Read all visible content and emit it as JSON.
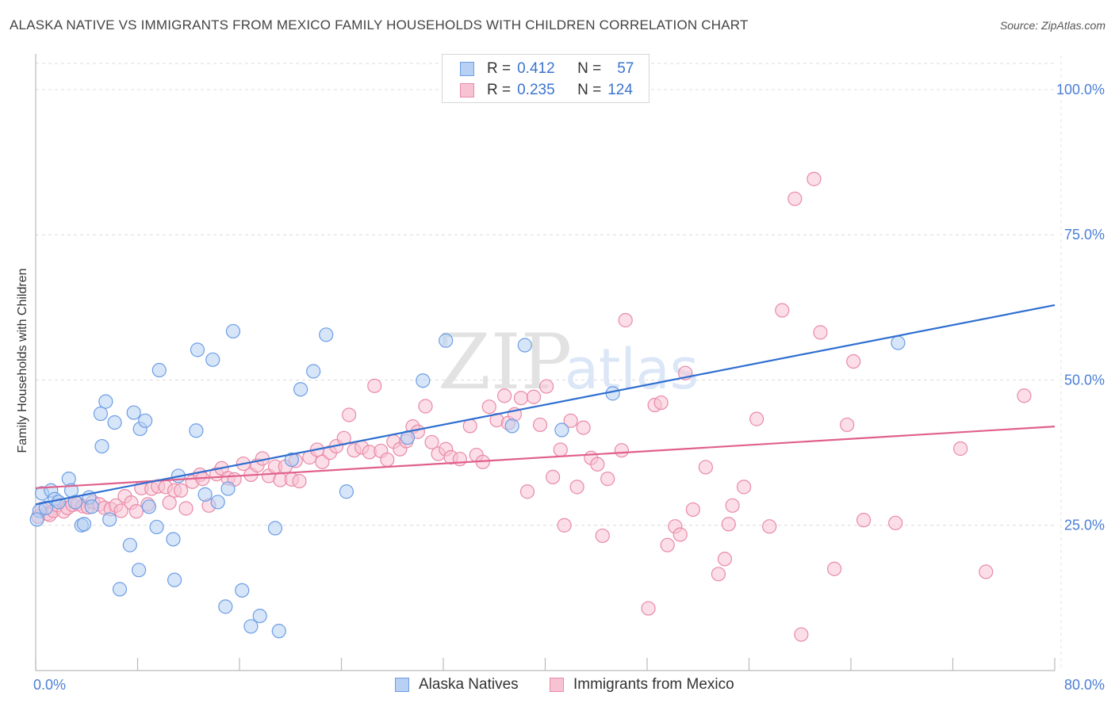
{
  "title": "ALASKA NATIVE VS IMMIGRANTS FROM MEXICO FAMILY HOUSEHOLDS WITH CHILDREN CORRELATION CHART",
  "source": "Source: ZipAtlas.com",
  "legend": {
    "rows": [
      {
        "r_label": "R =",
        "r_value": "0.412",
        "n_label": "N =",
        "n_value": "57"
      },
      {
        "r_label": "R =",
        "r_value": "0.235",
        "n_label": "N =",
        "n_value": "124"
      }
    ]
  },
  "bottom_legend": [
    "Alaska Natives",
    "Immigrants from Mexico"
  ],
  "colors": {
    "blue_fill": "#b7d0f3",
    "blue_stroke": "#6c9ee6",
    "blue_line": "#2f6fd0",
    "pink_fill": "#f7c3d3",
    "pink_stroke": "#e98aa8",
    "pink_line": "#e0608c",
    "tick_text": "#4a7fd6",
    "watermark": "#e2e2e2"
  },
  "watermark": {
    "zip": "ZIP",
    "atlas": "atlas"
  },
  "chart_data": {
    "type": "scatter",
    "title": "ALASKA NATIVE VS IMMIGRANTS FROM MEXICO FAMILY HOUSEHOLDS WITH CHILDREN CORRELATION CHART",
    "xlabel": "",
    "ylabel": "Family Households with Children",
    "xlim": [
      0,
      80
    ],
    "ylim": [
      0,
      104.5
    ],
    "x_tick_labels": [
      "0.0%",
      "80.0%"
    ],
    "y_ticks": [
      25,
      50,
      75,
      100
    ],
    "y_tick_labels": [
      "25.0%",
      "50.0%",
      "75.0%",
      "100.0%"
    ],
    "grid": true,
    "legend_position": "top-center",
    "series": [
      {
        "name": "Alaska Natives",
        "r": 0.412,
        "n": 57,
        "trend": {
          "x": [
            0,
            80
          ],
          "y": [
            28.6,
            62.9
          ]
        },
        "points": [
          [
            0.3,
            27.5
          ],
          [
            0.5,
            30.5
          ],
          [
            0.8,
            28
          ],
          [
            1.2,
            31
          ],
          [
            1.5,
            29.5
          ],
          [
            1.8,
            29
          ],
          [
            2.6,
            33
          ],
          [
            2.8,
            31
          ],
          [
            3.1,
            29
          ],
          [
            3.6,
            25
          ],
          [
            3.8,
            25.2
          ],
          [
            4.2,
            29.8
          ],
          [
            4.4,
            28.2
          ],
          [
            5.1,
            44.2
          ],
          [
            5.2,
            38.6
          ],
          [
            5.5,
            46.3
          ],
          [
            5.8,
            26
          ],
          [
            6.2,
            42.7
          ],
          [
            6.6,
            14
          ],
          [
            7.4,
            21.6
          ],
          [
            7.7,
            44.4
          ],
          [
            8.1,
            17.3
          ],
          [
            8.2,
            41.6
          ],
          [
            8.6,
            43
          ],
          [
            8.9,
            28.2
          ],
          [
            9.5,
            24.7
          ],
          [
            9.7,
            51.7
          ],
          [
            10.8,
            22.6
          ],
          [
            10.9,
            15.6
          ],
          [
            11.2,
            33.5
          ],
          [
            12.6,
            41.3
          ],
          [
            12.7,
            55.2
          ],
          [
            13.3,
            30.3
          ],
          [
            13.9,
            53.5
          ],
          [
            14.3,
            29
          ],
          [
            14.9,
            11
          ],
          [
            15.1,
            31.3
          ],
          [
            15.5,
            58.4
          ],
          [
            16.2,
            13.8
          ],
          [
            16.9,
            7.6
          ],
          [
            17.6,
            9.4
          ],
          [
            18.8,
            24.5
          ],
          [
            19.1,
            6.8
          ],
          [
            20.1,
            36.3
          ],
          [
            20.8,
            48.4
          ],
          [
            21.8,
            51.5
          ],
          [
            22.8,
            57.8
          ],
          [
            24.4,
            30.8
          ],
          [
            29.2,
            40.1
          ],
          [
            30.4,
            49.9
          ],
          [
            32.2,
            56.8
          ],
          [
            37.4,
            42.1
          ],
          [
            38.4,
            56
          ],
          [
            41.3,
            41.4
          ],
          [
            45.3,
            47.7
          ],
          [
            67.7,
            56.4
          ],
          [
            0.1,
            26
          ]
        ]
      },
      {
        "name": "Immigrants from Mexico",
        "r": 0.235,
        "n": 124,
        "trend": {
          "x": [
            0,
            80
          ],
          "y": [
            31.4,
            42
          ]
        },
        "points": [
          [
            0.2,
            26.5
          ],
          [
            0.5,
            27.8
          ],
          [
            0.9,
            27
          ],
          [
            1.1,
            26.8
          ],
          [
            1.4,
            27.5
          ],
          [
            1.7,
            28.5
          ],
          [
            2.2,
            27.4
          ],
          [
            2.5,
            28
          ],
          [
            2.9,
            28.5
          ],
          [
            3.3,
            28.7
          ],
          [
            3.7,
            28.3
          ],
          [
            4.1,
            28.1
          ],
          [
            4.5,
            29
          ],
          [
            5,
            28.6
          ],
          [
            5.4,
            28
          ],
          [
            5.9,
            27.8
          ],
          [
            6.3,
            28.4
          ],
          [
            6.7,
            27.5
          ],
          [
            7,
            30
          ],
          [
            7.5,
            28.9
          ],
          [
            7.9,
            27.4
          ],
          [
            8.3,
            31.4
          ],
          [
            8.8,
            28.6
          ],
          [
            9.1,
            31.3
          ],
          [
            9.6,
            31.7
          ],
          [
            10.2,
            31.6
          ],
          [
            10.5,
            28.9
          ],
          [
            10.9,
            31
          ],
          [
            11.4,
            31
          ],
          [
            11.8,
            27.9
          ],
          [
            12.3,
            32.5
          ],
          [
            12.9,
            33.7
          ],
          [
            13.1,
            33
          ],
          [
            13.6,
            28.4
          ],
          [
            14.2,
            33.8
          ],
          [
            14.6,
            34.8
          ],
          [
            15.1,
            33.1
          ],
          [
            15.6,
            32.9
          ],
          [
            16.3,
            35.6
          ],
          [
            16.9,
            33.7
          ],
          [
            17.4,
            35.3
          ],
          [
            17.8,
            36.5
          ],
          [
            18.3,
            33.5
          ],
          [
            18.8,
            35.1
          ],
          [
            19.2,
            32.8
          ],
          [
            19.6,
            35.1
          ],
          [
            20.1,
            32.9
          ],
          [
            20.4,
            36.1
          ],
          [
            20.7,
            32.6
          ],
          [
            21.5,
            36.7
          ],
          [
            22.1,
            38
          ],
          [
            22.5,
            35.9
          ],
          [
            23.1,
            37.5
          ],
          [
            23.6,
            38.6
          ],
          [
            24.2,
            40
          ],
          [
            24.6,
            44
          ],
          [
            25,
            37.9
          ],
          [
            25.6,
            38.4
          ],
          [
            26.2,
            37.6
          ],
          [
            26.6,
            49
          ],
          [
            27.1,
            37.8
          ],
          [
            27.6,
            36.3
          ],
          [
            28.1,
            39.4
          ],
          [
            28.6,
            38.1
          ],
          [
            29.1,
            39.5
          ],
          [
            29.6,
            42
          ],
          [
            30,
            41.1
          ],
          [
            30.6,
            45.5
          ],
          [
            31.1,
            39.3
          ],
          [
            31.6,
            37.3
          ],
          [
            32.2,
            38.1
          ],
          [
            32.6,
            36.7
          ],
          [
            33.3,
            36.4
          ],
          [
            34.1,
            42.1
          ],
          [
            34.6,
            37.1
          ],
          [
            35.1,
            35.9
          ],
          [
            35.6,
            45.4
          ],
          [
            36.2,
            43.1
          ],
          [
            36.8,
            47.3
          ],
          [
            37.1,
            42.6
          ],
          [
            37.6,
            44.1
          ],
          [
            38.1,
            46.9
          ],
          [
            38.6,
            30.8
          ],
          [
            39.1,
            47.1
          ],
          [
            39.6,
            42.3
          ],
          [
            40.1,
            48.9
          ],
          [
            40.6,
            33.3
          ],
          [
            41.2,
            38
          ],
          [
            41.5,
            25
          ],
          [
            42,
            43
          ],
          [
            42.5,
            31.6
          ],
          [
            43,
            41.8
          ],
          [
            43.6,
            36.6
          ],
          [
            44.1,
            35.5
          ],
          [
            44.5,
            23.2
          ],
          [
            44.9,
            33
          ],
          [
            46,
            37.9
          ],
          [
            46.3,
            60.3
          ],
          [
            48.1,
            10.7
          ],
          [
            48.6,
            45.7
          ],
          [
            49.1,
            46.1
          ],
          [
            49.6,
            21.6
          ],
          [
            50.2,
            24.8
          ],
          [
            50.6,
            23.4
          ],
          [
            51,
            51.2
          ],
          [
            51.6,
            27.7
          ],
          [
            52.6,
            35
          ],
          [
            53.6,
            16.6
          ],
          [
            54.1,
            19.2
          ],
          [
            54.4,
            25.2
          ],
          [
            54.7,
            28.4
          ],
          [
            55.6,
            31.6
          ],
          [
            56.6,
            43.3
          ],
          [
            57.6,
            24.8
          ],
          [
            58.6,
            62
          ],
          [
            59.6,
            81.2
          ],
          [
            60.1,
            6.2
          ],
          [
            61.1,
            84.6
          ],
          [
            61.6,
            58.2
          ],
          [
            62.7,
            17.5
          ],
          [
            63.7,
            42.3
          ],
          [
            64.2,
            53.2
          ],
          [
            65,
            25.9
          ],
          [
            67.5,
            25.4
          ],
          [
            72.6,
            38.2
          ],
          [
            74.6,
            17
          ],
          [
            77.6,
            47.3
          ]
        ]
      }
    ]
  }
}
